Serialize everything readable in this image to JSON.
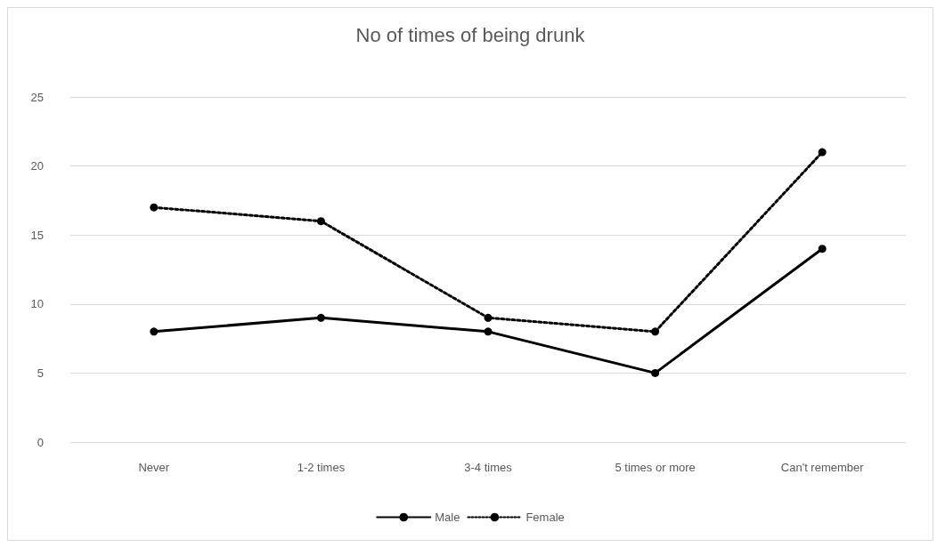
{
  "chart_data": {
    "type": "line",
    "title": "No of times of being drunk",
    "categories": [
      "Never",
      "1-2 times",
      "3-4 times",
      "5 times or more",
      "Can't remember"
    ],
    "series": [
      {
        "name": "Male",
        "color": "#000000",
        "line_style": "solid",
        "values": [
          8,
          9,
          8,
          5,
          14
        ]
      },
      {
        "name": "Female",
        "color": "#000000",
        "line_style": "dotted",
        "values": [
          17,
          16,
          9,
          8,
          21
        ]
      }
    ],
    "ylim": [
      0,
      25
    ],
    "yticks": [
      0,
      5,
      10,
      15,
      20,
      25
    ],
    "grid": "y",
    "legend": "bottom",
    "marker": "circle"
  }
}
